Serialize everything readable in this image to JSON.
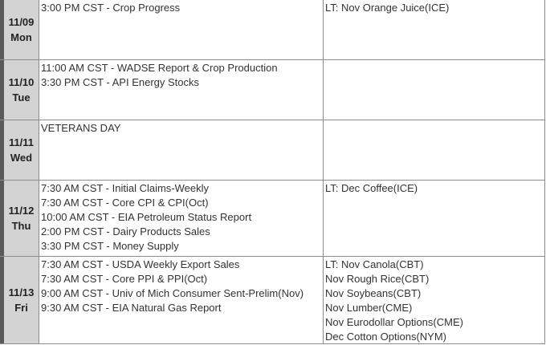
{
  "rows": [
    {
      "date": "11/09",
      "day": "Mon",
      "events": [
        "3:00 PM CST - Crop Progress"
      ],
      "expirations": [
        "LT: Nov Orange Juice(ICE)"
      ]
    },
    {
      "date": "11/10",
      "day": "Tue",
      "events": [
        "11:00 AM CST - WADSE Report & Crop Production",
        "3:30 PM CST - API Energy Stocks"
      ],
      "expirations": []
    },
    {
      "date": "11/11",
      "day": "Wed",
      "events": [
        "VETERANS DAY"
      ],
      "expirations": []
    },
    {
      "date": "11/12",
      "day": "Thu",
      "events": [
        "7:30 AM CST - Initial Claims-Weekly",
        "7:30 AM CST - Core CPI & CPI(Oct)",
        "10:00 AM CST - EIA Petroleum Status Report",
        "2:00 PM CST - Dairy Products Sales",
        "3:30 PM CST - Money Supply"
      ],
      "expirations": [
        "LT: Dec Coffee(ICE)"
      ]
    },
    {
      "date": "11/13",
      "day": "Fri",
      "events": [
        "7:30 AM CST - USDA Weekly Export Sales",
        "7:30 AM CST - Core PPI & PPI(Oct)",
        "9:00 AM CST - Univ of Mich Consumer Sent-Prelim(Nov)",
        "9:30 AM CST - EIA Natural Gas Report"
      ],
      "expirations": [
        "LT: Nov Canola(CBT)",
        "Nov Rough Rice(CBT)",
        "Nov Soybeans(CBT)",
        "Nov Lumber(CME)",
        "Nov Eurodollar Options(CME)",
        "Dec Cotton Options(NYM)"
      ]
    }
  ]
}
